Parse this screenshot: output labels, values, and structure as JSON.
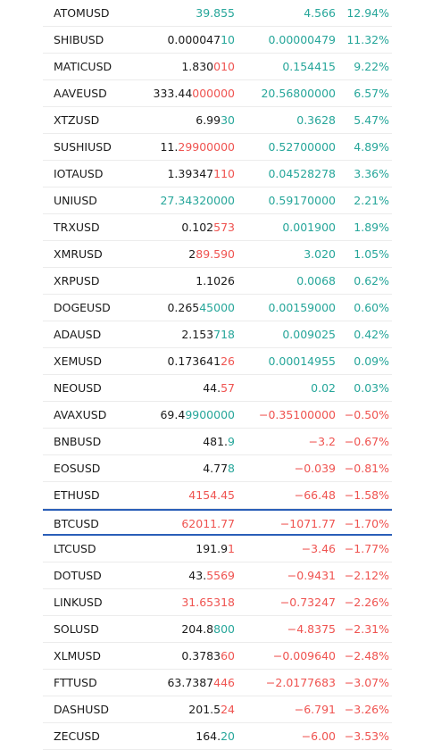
{
  "rows": [
    {
      "symbol": "ATOMUSD",
      "last_a": "",
      "last_b": "39.855",
      "last_b_color": "pos",
      "change": "4.566",
      "pct": "12.94%",
      "dir": "pos"
    },
    {
      "symbol": "SHIBUSD",
      "last_a": "0.000047",
      "last_b": "10",
      "last_b_color": "pos",
      "change": "0.00000479",
      "pct": "11.32%",
      "dir": "pos"
    },
    {
      "symbol": "MATICUSD",
      "last_a": "1.830",
      "last_b": "010",
      "last_b_color": "neg",
      "change": "0.154415",
      "pct": "9.22%",
      "dir": "pos"
    },
    {
      "symbol": "AAVEUSD",
      "last_a": "333.44",
      "last_b": "000000",
      "last_b_color": "neg",
      "change": "20.56800000",
      "pct": "6.57%",
      "dir": "pos"
    },
    {
      "symbol": "XTZUSD",
      "last_a": "6.99",
      "last_b": "30",
      "last_b_color": "pos",
      "change": "0.3628",
      "pct": "5.47%",
      "dir": "pos"
    },
    {
      "symbol": "SUSHIUSD",
      "last_a": "11.",
      "last_b": "29900000",
      "last_b_color": "neg",
      "change": "0.52700000",
      "pct": "4.89%",
      "dir": "pos"
    },
    {
      "symbol": "IOTAUSD",
      "last_a": "1.39347",
      "last_b": "110",
      "last_b_color": "neg",
      "change": "0.04528278",
      "pct": "3.36%",
      "dir": "pos"
    },
    {
      "symbol": "UNIUSD",
      "last_a": "",
      "last_b": "27.34320000",
      "last_b_color": "pos",
      "change": "0.59170000",
      "pct": "2.21%",
      "dir": "pos"
    },
    {
      "symbol": "TRXUSD",
      "last_a": "0.102",
      "last_b": "573",
      "last_b_color": "neg",
      "change": "0.001900",
      "pct": "1.89%",
      "dir": "pos"
    },
    {
      "symbol": "XMRUSD",
      "last_a": "2",
      "last_b": "89.590",
      "last_b_color": "neg",
      "change": "3.020",
      "pct": "1.05%",
      "dir": "pos"
    },
    {
      "symbol": "XRPUSD",
      "last_a": "1.1026",
      "last_b": "",
      "last_b_color": "pos",
      "change": "0.0068",
      "pct": "0.62%",
      "dir": "pos"
    },
    {
      "symbol": "DOGEUSD",
      "last_a": "0.265",
      "last_b": "45000",
      "last_b_color": "pos",
      "change": "0.00159000",
      "pct": "0.60%",
      "dir": "pos"
    },
    {
      "symbol": "ADAUSD",
      "last_a": "2.153",
      "last_b": "718",
      "last_b_color": "pos",
      "change": "0.009025",
      "pct": "0.42%",
      "dir": "pos"
    },
    {
      "symbol": "XEMUSD",
      "last_a": "0.173641",
      "last_b": "26",
      "last_b_color": "neg",
      "change": "0.00014955",
      "pct": "0.09%",
      "dir": "pos"
    },
    {
      "symbol": "NEOUSD",
      "last_a": "44.",
      "last_b": "57",
      "last_b_color": "neg",
      "change": "0.02",
      "pct": "0.03%",
      "dir": "pos"
    },
    {
      "symbol": "AVAXUSD",
      "last_a": "69.4",
      "last_b": "9900000",
      "last_b_color": "pos",
      "change": "−0.35100000",
      "pct": "−0.50%",
      "dir": "neg"
    },
    {
      "symbol": "BNBUSD",
      "last_a": "481.",
      "last_b": "9",
      "last_b_color": "pos",
      "change": "−3.2",
      "pct": "−0.67%",
      "dir": "neg"
    },
    {
      "symbol": "EOSUSD",
      "last_a": "4.77",
      "last_b": "8",
      "last_b_color": "pos",
      "change": "−0.039",
      "pct": "−0.81%",
      "dir": "neg"
    },
    {
      "symbol": "ETHUSD",
      "last_a": "",
      "last_b": "4154.45",
      "last_b_color": "neg",
      "change": "−66.48",
      "pct": "−1.58%",
      "dir": "neg"
    },
    {
      "symbol": "BTCUSD",
      "last_a": "",
      "last_b": "62011.77",
      "last_b_color": "neg",
      "change": "−1071.77",
      "pct": "−1.70%",
      "dir": "neg",
      "selected": true
    },
    {
      "symbol": "LTCUSD",
      "last_a": "191.9",
      "last_b": "1",
      "last_b_color": "neg",
      "change": "−3.46",
      "pct": "−1.77%",
      "dir": "neg"
    },
    {
      "symbol": "DOTUSD",
      "last_a": "43.",
      "last_b": "5569",
      "last_b_color": "neg",
      "change": "−0.9431",
      "pct": "−2.12%",
      "dir": "neg"
    },
    {
      "symbol": "LINKUSD",
      "last_a": "",
      "last_b": "31.65318",
      "last_b_color": "neg",
      "change": "−0.73247",
      "pct": "−2.26%",
      "dir": "neg"
    },
    {
      "symbol": "SOLUSD",
      "last_a": "204.8",
      "last_b": "800",
      "last_b_color": "pos",
      "change": "−4.8375",
      "pct": "−2.31%",
      "dir": "neg"
    },
    {
      "symbol": "XLMUSD",
      "last_a": "0.3783",
      "last_b": "60",
      "last_b_color": "neg",
      "change": "−0.009640",
      "pct": "−2.48%",
      "dir": "neg"
    },
    {
      "symbol": "FTTUSD",
      "last_a": "63.7387",
      "last_b": "446",
      "last_b_color": "neg",
      "change": "−2.0177683",
      "pct": "−3.07%",
      "dir": "neg"
    },
    {
      "symbol": "DASHUSD",
      "last_a": "201.5",
      "last_b": "24",
      "last_b_color": "neg",
      "change": "−6.791",
      "pct": "−3.26%",
      "dir": "neg"
    },
    {
      "symbol": "ZECUSD",
      "last_a": "164.",
      "last_b": "20",
      "last_b_color": "pos",
      "change": "−6.00",
      "pct": "−3.53%",
      "dir": "neg"
    }
  ],
  "colors": {
    "positive": "#26a69a",
    "negative": "#ef5350",
    "selected_border": "#2a5fb8"
  }
}
